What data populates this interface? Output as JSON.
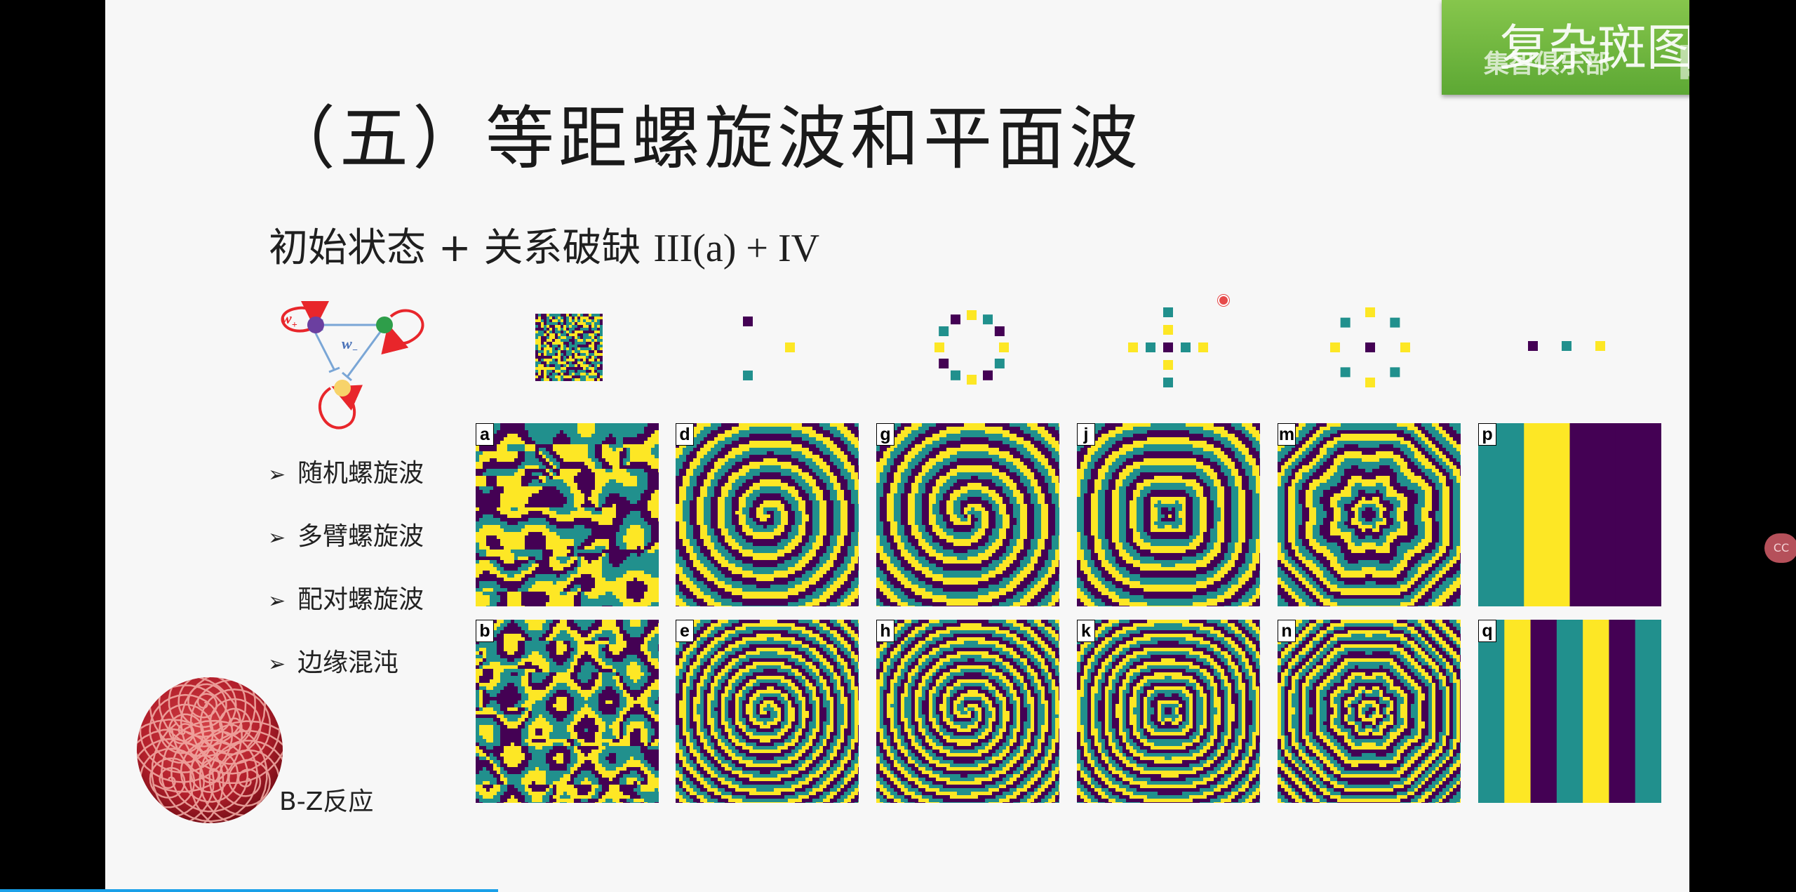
{
  "title": "（五）等距螺旋波和平面波",
  "subtitle": {
    "text_prefix": "初始状态 + 关系破缺 ",
    "text_suffix": "III(a) + IV"
  },
  "network": {
    "w_plus": "w",
    "w_plus_sub": "+",
    "w_minus": "w",
    "w_minus_sub": "−"
  },
  "bullets": [
    {
      "text": "随机螺旋波"
    },
    {
      "text": "多臂螺旋波"
    },
    {
      "text": "配对螺旋波"
    },
    {
      "text": "边缘混沌"
    }
  ],
  "bz_label": "B-Z反应",
  "badge": {
    "title": "复杂斑图",
    "sub": "集智俱乐部",
    "logo": "bilibili"
  },
  "cc_button": "CC",
  "colors": {
    "purple": "#440154",
    "teal": "#21908d",
    "yellow": "#fde725",
    "arrow_red": "#e8262b",
    "edge_blue": "#7aa6d6",
    "badge_green": "#6cb33f",
    "progress_blue": "#1aa0e8"
  },
  "panels": [
    {
      "label": "a",
      "kind": "random",
      "seed": 7
    },
    {
      "label": "b",
      "kind": "random",
      "seed": 19
    },
    {
      "label": "d",
      "kind": "spiral",
      "arms": 1
    },
    {
      "label": "e",
      "kind": "spiral",
      "arms": 1
    },
    {
      "label": "g",
      "kind": "spiral",
      "arms": 2
    },
    {
      "label": "h",
      "kind": "spiral",
      "arms": 2
    },
    {
      "label": "j",
      "kind": "pair",
      "n": 4
    },
    {
      "label": "k",
      "kind": "pair",
      "n": 4
    },
    {
      "label": "m",
      "kind": "pair",
      "n": 8
    },
    {
      "label": "n",
      "kind": "pair",
      "n": 8
    },
    {
      "label": "p",
      "kind": "plane",
      "stripes": [
        "teal",
        "yellow",
        "purple",
        "purple"
      ]
    },
    {
      "label": "q",
      "kind": "plane",
      "stripes": [
        "teal",
        "yellow",
        "purple",
        "teal",
        "yellow",
        "purple",
        "teal"
      ]
    }
  ],
  "motifs": [
    {
      "kind": "noise"
    },
    {
      "kind": "triangle"
    },
    {
      "kind": "ring12"
    },
    {
      "kind": "cross9"
    },
    {
      "kind": "ring9"
    },
    {
      "kind": "line3"
    }
  ]
}
